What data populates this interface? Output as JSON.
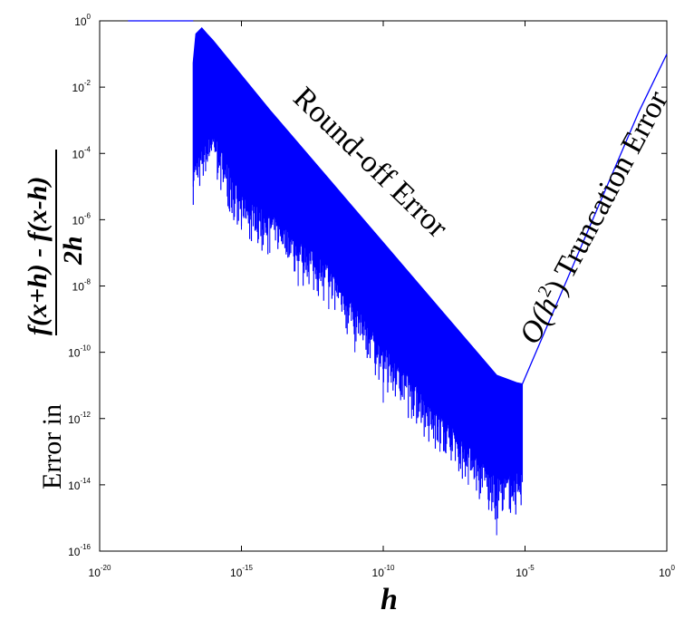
{
  "chart_data": {
    "type": "line",
    "scale": {
      "x": "log",
      "y": "log"
    },
    "xlim": [
      1e-20,
      1
    ],
    "ylim": [
      1e-16,
      1
    ],
    "x_tick_exponents": [
      -20,
      -15,
      -10,
      -5,
      0
    ],
    "y_tick_exponents": [
      -16,
      -14,
      -12,
      -10,
      -8,
      -6,
      -4,
      -2,
      0
    ],
    "tick_base": "10",
    "xlabel": "h",
    "ylabel": {
      "prefix": "Error in",
      "numerator": "f(x+h) - f(x-h)",
      "denominator": "2h"
    },
    "annotations": {
      "roundoff": "Round-off Error",
      "truncation_O": "O(",
      "truncation_h": "h",
      "truncation_exp": "2",
      "truncation_rest": ") Truncation Error"
    },
    "series": [
      {
        "color": "#0000ff",
        "flat_region": {
          "x": [
            1e-19,
            2e-17
          ],
          "y": 1
        },
        "upper_envelope": {
          "x": [
            2e-17,
            2.5e-17,
            4e-17,
            6e-17,
            1e-16,
            1e-14,
            1e-12,
            1e-10,
            1e-08,
            1e-06,
            5e-06,
            8e-06
          ],
          "y": [
            0.05,
            0.4,
            0.6,
            0.4,
            0.25,
            0.002,
            2e-05,
            2e-07,
            2e-09,
            2e-11,
            1.2e-11,
            1.1e-11
          ]
        },
        "lower_envelope": {
          "x": [
            2e-17,
            1e-16,
            1e-15,
            1e-14,
            1e-13,
            1e-12,
            1e-11,
            1e-10,
            1e-09,
            1e-08,
            1e-07,
            1e-06,
            8e-06
          ],
          "y": [
            1e-05,
            0.0001,
            1e-06,
            3e-07,
            5e-08,
            1e-08,
            5e-10,
            3e-11,
            3e-12,
            3e-13,
            3e-14,
            3e-15,
            5e-15
          ]
        },
        "spikes": [
          {
            "x": 2e-17,
            "y": 1e-05
          },
          {
            "x": 1e-15,
            "y": 5e-07
          },
          {
            "x": 1e-14,
            "y": 1e-07
          },
          {
            "x": 1e-13,
            "y": 1e-08
          },
          {
            "x": 1.2e-12,
            "y": 2e-09
          },
          {
            "x": 1e-11,
            "y": 1e-10
          },
          {
            "x": 1e-10,
            "y": 3e-12
          },
          {
            "x": 1e-09,
            "y": 1e-12
          },
          {
            "x": 1e-08,
            "y": 1e-13
          },
          {
            "x": 1e-07,
            "y": 1e-14
          },
          {
            "x": 1e-06,
            "y": 3e-16
          },
          {
            "x": 3e-06,
            "y": 2e-15
          }
        ],
        "truncation_line": {
          "x": [
            8e-06,
            1e-05,
            0.0001,
            0.001,
            0.01,
            0.1,
            1
          ],
          "y": [
            1.1e-11,
            1.7e-11,
            1.7e-09,
            1.7e-07,
            1.7e-05,
            0.0017,
            0.1
          ]
        }
      }
    ]
  }
}
